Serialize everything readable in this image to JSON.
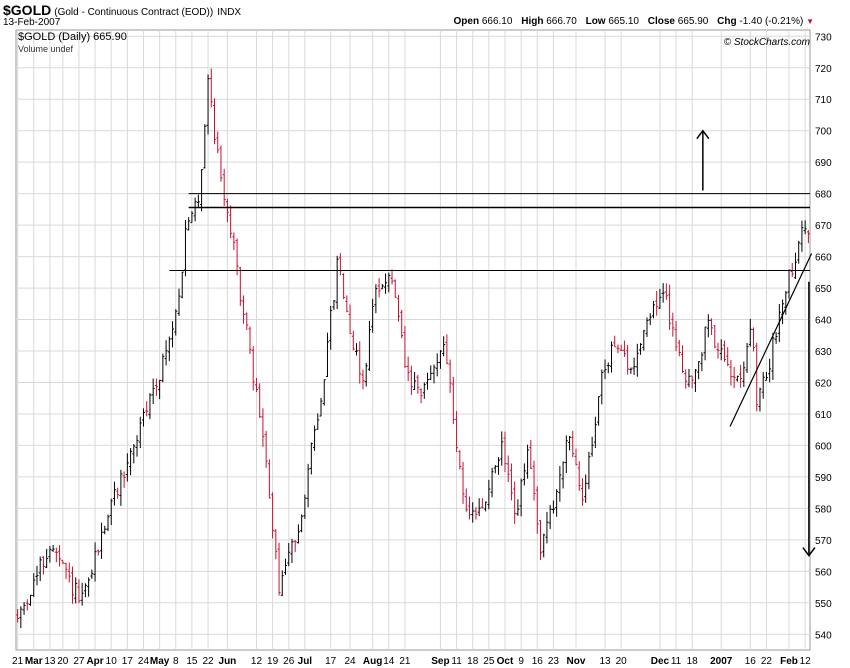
{
  "header": {
    "symbol": "$GOLD",
    "description": "(Gold - Continuous Contract (EOD))",
    "exchange": "INDX",
    "date": "13-Feb-2007",
    "open_label": "Open",
    "open": "666.10",
    "high_label": "High",
    "high": "666.70",
    "low_label": "Low",
    "low": "665.10",
    "close_label": "Close",
    "close": "665.90",
    "chg_label": "Chg",
    "chg": "-1.40 (-0.21%)"
  },
  "legend": {
    "main": "$GOLD (Daily) 665.90",
    "volume": "Volume undef"
  },
  "copyright": "© StockCharts.com",
  "colors": {
    "up": "#000000",
    "down": "#c8102e",
    "grid": "#d9d9d9",
    "trend": "#000000"
  },
  "chart_data": {
    "type": "ohlc",
    "ylim": [
      535,
      732
    ],
    "yticks": [
      540,
      550,
      560,
      570,
      580,
      590,
      600,
      610,
      620,
      630,
      640,
      650,
      660,
      670,
      680,
      690,
      700,
      710,
      720,
      730
    ],
    "xlabels": [
      "21",
      "Mar",
      "13",
      "20",
      "27",
      "Apr",
      "10",
      "17",
      "24",
      "May",
      "8",
      "15",
      "22",
      "Jun",
      "12",
      "19",
      "26",
      "Jul",
      "17",
      "24",
      "Aug",
      "14",
      "21",
      "Sep",
      "11",
      "18",
      "25",
      "Oct",
      "9",
      "16",
      "23",
      "Nov",
      "13",
      "20",
      "Dec",
      "11",
      "18",
      "2007",
      "16",
      "22",
      "Feb",
      "12"
    ],
    "xlabel_bars": [
      0,
      5,
      10,
      14,
      19,
      24,
      29,
      34,
      39,
      44,
      49,
      54,
      59,
      65,
      74,
      79,
      84,
      89,
      97,
      103,
      110,
      115,
      120,
      131,
      136,
      141,
      146,
      151,
      156,
      161,
      166,
      173,
      182,
      187,
      199,
      204,
      209,
      218,
      227,
      232,
      239,
      244
    ],
    "bar_count": 246,
    "price_path": [
      [
        0,
        545
      ],
      [
        12,
        568
      ],
      [
        20,
        555
      ],
      [
        24,
        550
      ],
      [
        33,
        578
      ],
      [
        42,
        598
      ],
      [
        54,
        628
      ],
      [
        58,
        640
      ],
      [
        62,
        668
      ],
      [
        67,
        680
      ],
      [
        70,
        718
      ],
      [
        73,
        695
      ],
      [
        78,
        670
      ],
      [
        83,
        643
      ],
      [
        86,
        625
      ],
      [
        90,
        605
      ],
      [
        96,
        555
      ],
      [
        103,
        573
      ],
      [
        112,
        618
      ],
      [
        118,
        660
      ],
      [
        122,
        638
      ],
      [
        127,
        620
      ],
      [
        132,
        652
      ],
      [
        138,
        652
      ],
      [
        143,
        622
      ],
      [
        148,
        615
      ],
      [
        152,
        623
      ],
      [
        157,
        634
      ],
      [
        161,
        602
      ],
      [
        166,
        575
      ],
      [
        172,
        582
      ],
      [
        178,
        600
      ],
      [
        183,
        578
      ],
      [
        188,
        598
      ],
      [
        192,
        568
      ],
      [
        197,
        580
      ],
      [
        202,
        603
      ],
      [
        208,
        583
      ],
      [
        214,
        618
      ],
      [
        220,
        635
      ],
      [
        225,
        622
      ],
      [
        232,
        642
      ],
      [
        238,
        648
      ],
      [
        244,
        625
      ],
      [
        249,
        620
      ],
      [
        254,
        640
      ],
      [
        260,
        625
      ],
      [
        266,
        624
      ],
      [
        270,
        636
      ],
      [
        272,
        612
      ],
      [
        277,
        628
      ],
      [
        282,
        650
      ],
      [
        286,
        660
      ],
      [
        289,
        670
      ],
      [
        291,
        666
      ]
    ],
    "volatility": 4.2,
    "horizontal_lines": [
      680,
      675.6,
      655.6
    ],
    "annotations": [
      {
        "type": "arrow-up",
        "price_from": 681,
        "price_to": 700,
        "bar": 252
      },
      {
        "type": "arrow-down",
        "price_from": 652,
        "price_to": 565,
        "bar": 291
      },
      {
        "type": "trendline",
        "from": [
          262,
          606
        ],
        "to": [
          292,
          661
        ]
      }
    ]
  }
}
